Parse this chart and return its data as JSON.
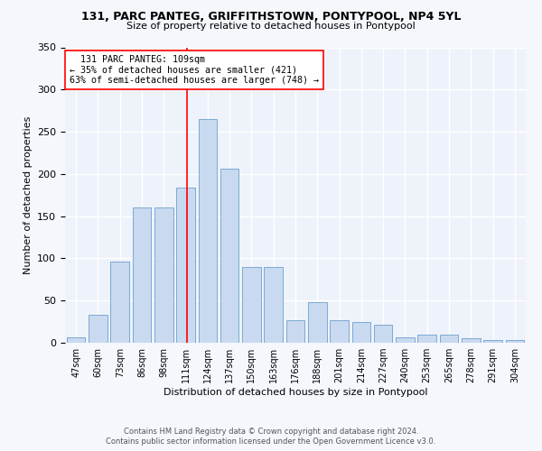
{
  "title1": "131, PARC PANTEG, GRIFFITHSTOWN, PONTYPOOL, NP4 5YL",
  "title2": "Size of property relative to detached houses in Pontypool",
  "xlabel": "Distribution of detached houses by size in Pontypool",
  "ylabel": "Number of detached properties",
  "bar_labels": [
    "47sqm",
    "60sqm",
    "73sqm",
    "86sqm",
    "98sqm",
    "111sqm",
    "124sqm",
    "137sqm",
    "150sqm",
    "163sqm",
    "176sqm",
    "188sqm",
    "201sqm",
    "214sqm",
    "227sqm",
    "240sqm",
    "253sqm",
    "265sqm",
    "278sqm",
    "291sqm",
    "304sqm"
  ],
  "bar_values": [
    6,
    33,
    96,
    160,
    160,
    184,
    265,
    206,
    90,
    90,
    27,
    48,
    27,
    25,
    21,
    6,
    10,
    10,
    5,
    3,
    3
  ],
  "bar_color": "#c9d9f0",
  "bar_edge_color": "#7aaad4",
  "vline_color": "red",
  "vline_x": 5.07,
  "property_label": "131 PARC PANTEG: 109sqm",
  "pct_smaller": 35,
  "n_smaller": 421,
  "pct_larger_semi": 63,
  "n_larger_semi": 748,
  "footer1": "Contains HM Land Registry data © Crown copyright and database right 2024.",
  "footer2": "Contains public sector information licensed under the Open Government Licence v3.0.",
  "ylim": [
    0,
    350
  ],
  "yticks": [
    0,
    50,
    100,
    150,
    200,
    250,
    300,
    350
  ],
  "bg_color": "#eef2fa",
  "fig_bg": "#f5f7fd"
}
